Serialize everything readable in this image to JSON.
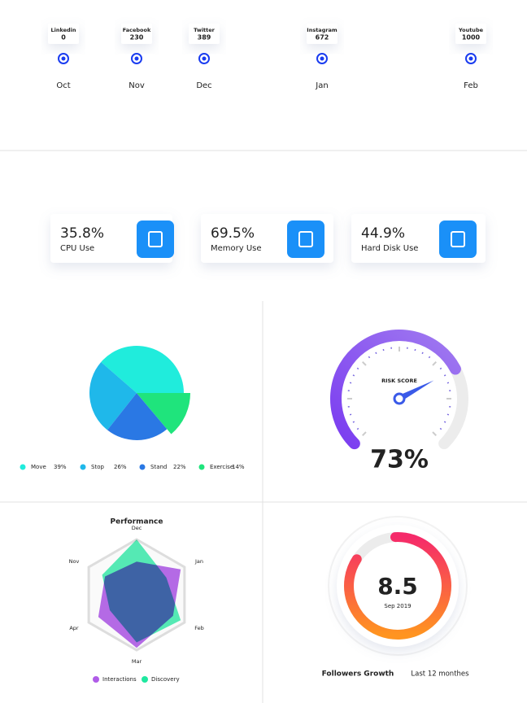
{
  "chart_data": [
    {
      "type": "timeline",
      "categories": [
        "Oct",
        "Nov",
        "Dec",
        "Jan",
        "Feb"
      ],
      "labels": [
        "Linkedin",
        "Facebook",
        "Twitter",
        "Instagram",
        "Youtube"
      ],
      "values": [
        0,
        230,
        389,
        672,
        1000
      ],
      "color": "#1a3cf0"
    },
    {
      "type": "pie",
      "categories": [
        "Move",
        "Stop",
        "Stand",
        "Exercise"
      ],
      "values": [
        39,
        26,
        22,
        14
      ],
      "value_labels": [
        "39%",
        "26%",
        "22%",
        "14%"
      ],
      "colors": [
        "#20ecdc",
        "#1fb8ea",
        "#2a78e4",
        "#1fe47c"
      ]
    },
    {
      "type": "gauge",
      "title": "RISK SCORE",
      "value": 73,
      "value_label": "73%",
      "ylim": [
        0,
        100
      ]
    },
    {
      "type": "radar",
      "title": "Performance",
      "categories": [
        "Dec",
        "Jan",
        "Feb",
        "Mar",
        "Apr",
        "Nov"
      ],
      "ylim": [
        0,
        100
      ],
      "series": [
        {
          "name": "Interactions",
          "color": "#b05ce8",
          "values": [
            60,
            92,
            76,
            96,
            80,
            66
          ]
        },
        {
          "name": "Discovery",
          "color": "#1fe8a0",
          "values": [
            100,
            62,
            92,
            86,
            56,
            72
          ]
        }
      ]
    },
    {
      "type": "ring",
      "value": 8.5,
      "ylim": [
        0,
        10
      ],
      "subtitle": "Sep 2019",
      "title": "Followers Growth",
      "note": "Last 12 monthes"
    }
  ],
  "stats": [
    {
      "value": "35.8%",
      "label": "CPU Use"
    },
    {
      "value": "69.5%",
      "label": "Memory Use"
    },
    {
      "value": "44.9%",
      "label": "Hard Disk Use"
    }
  ]
}
